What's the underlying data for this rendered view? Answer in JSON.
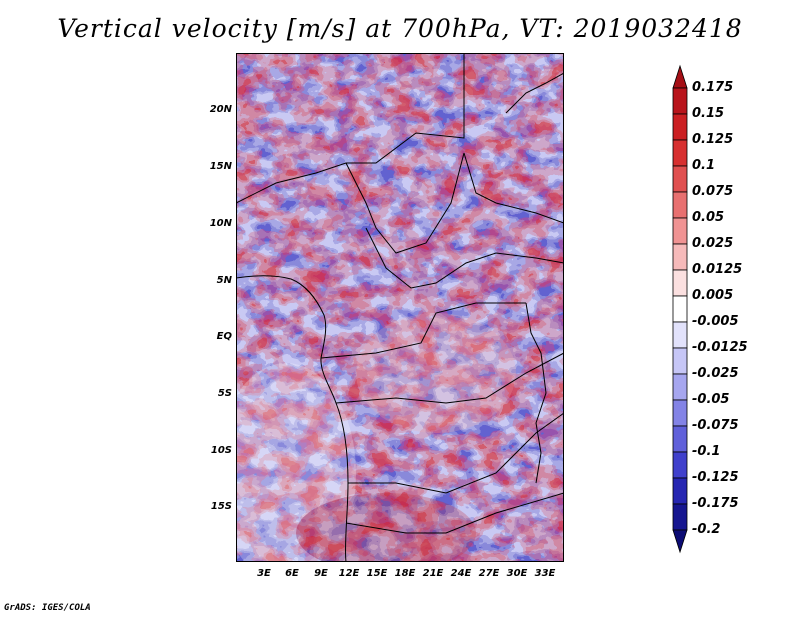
{
  "title": "Vertical velocity [m/s] at 700hPa, VT: 2019032418",
  "map": {
    "lat_ticks": [
      "20N",
      "15N",
      "10N",
      "5N",
      "EQ",
      "5S",
      "10S",
      "15S"
    ],
    "lon_ticks": [
      "3E",
      "6E",
      "9E",
      "12E",
      "15E",
      "18E",
      "21E",
      "24E",
      "27E",
      "30E",
      "33E"
    ]
  },
  "colorbar": {
    "labels": [
      "0.175",
      "0.15",
      "0.125",
      "0.1",
      "0.075",
      "0.05",
      "0.025",
      "0.0125",
      "0.005",
      "-0.005",
      "-0.0125",
      "-0.025",
      "-0.05",
      "-0.075",
      "-0.1",
      "-0.125",
      "-0.175",
      "-0.2"
    ],
    "colors": [
      "#a50f15",
      "#b8141b",
      "#cb1f22",
      "#d73030",
      "#e05050",
      "#e87070",
      "#f09393",
      "#f6baba",
      "#fbe0e0",
      "#ffffff",
      "#e2e2fb",
      "#c6c6f6",
      "#a6a6ef",
      "#8383e6",
      "#6060da",
      "#4040cc",
      "#2626b2",
      "#161690",
      "#0c0c74"
    ]
  },
  "credit": "GrADS: IGES/COLA"
}
